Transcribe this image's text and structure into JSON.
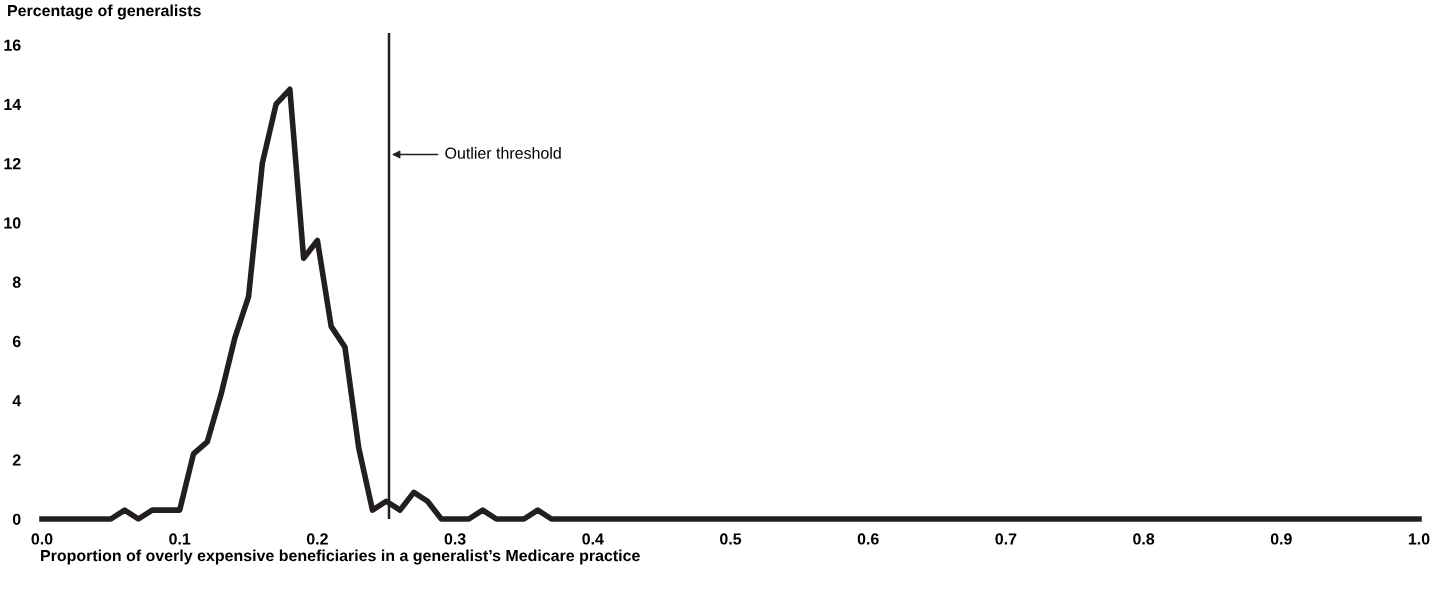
{
  "chart_data": {
    "type": "line",
    "ylabel": "Percentage of generalists",
    "xlabel": "Proportion of overly expensive beneficiaries in a generalist’s Medicare practice",
    "x": [
      0.0,
      0.05,
      0.06,
      0.07,
      0.08,
      0.09,
      0.1,
      0.11,
      0.12,
      0.13,
      0.14,
      0.15,
      0.16,
      0.17,
      0.18,
      0.19,
      0.2,
      0.21,
      0.22,
      0.23,
      0.24,
      0.25,
      0.26,
      0.27,
      0.28,
      0.29,
      0.3,
      0.31,
      0.32,
      0.33,
      0.34,
      0.35,
      0.36,
      0.37,
      1.0
    ],
    "series": [
      {
        "color": "#231f20",
        "values": [
          0,
          0,
          0.3,
          0,
          0.3,
          0.3,
          0.3,
          2.2,
          2.6,
          4.2,
          6.1,
          7.5,
          12,
          14,
          14.5,
          8.8,
          9.4,
          6.5,
          5.8,
          2.4,
          0.3,
          0.6,
          0.3,
          0.9,
          0.6,
          0,
          0,
          0,
          0.3,
          0,
          0,
          0,
          0.3,
          0,
          0
        ]
      }
    ],
    "xlim": [
      0.0,
      1.0
    ],
    "xticks": [
      {
        "value": 0,
        "label": "0.0"
      },
      0.1,
      0.2,
      0.3,
      0.4,
      0.5,
      0.6,
      0.7,
      0.8,
      0.9,
      {
        "value": 1,
        "label": "1.0"
      }
    ],
    "ylim": [
      0,
      16.4
    ],
    "yticks": [
      0,
      2,
      4,
      6,
      8,
      10,
      12,
      14,
      16
    ],
    "ref_lines": [
      {
        "axis": "x",
        "value": 0.252,
        "label": "Outlier threshold",
        "color": "#231f20"
      }
    ],
    "grid": false,
    "legend": false,
    "marker": "none",
    "line_style": "solid"
  }
}
